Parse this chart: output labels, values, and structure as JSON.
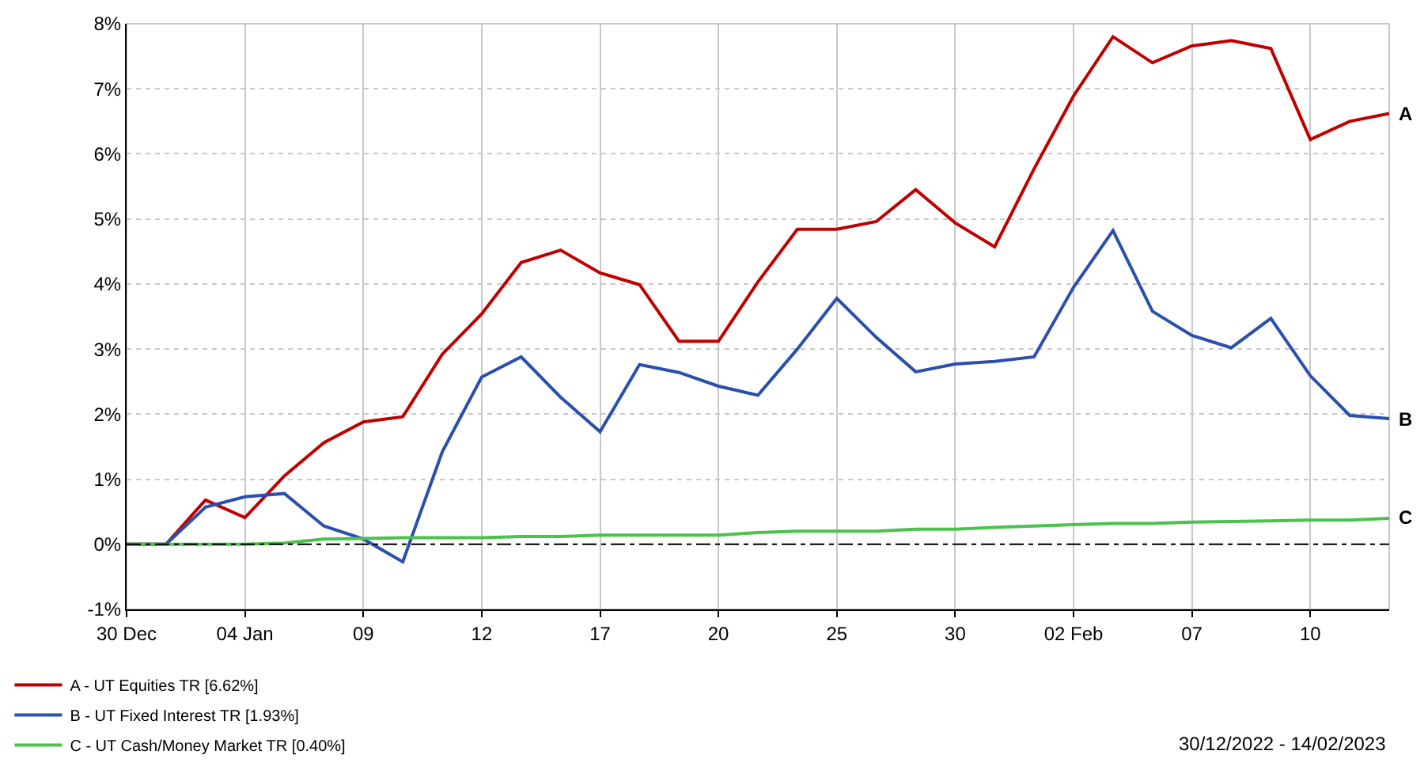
{
  "chart_data": {
    "type": "line",
    "categories": [
      "30 Dec",
      null,
      null,
      "04 Jan",
      null,
      null,
      "09",
      null,
      null,
      "12",
      null,
      null,
      "17",
      null,
      null,
      "20",
      null,
      null,
      "25",
      null,
      null,
      "30",
      null,
      null,
      "02 Feb",
      null,
      null,
      "07",
      null,
      null,
      "10",
      null,
      null
    ],
    "series": [
      {
        "name": "A - UT Equities TR [6.62%]",
        "color": "#c00000",
        "values": [
          0,
          0,
          0.68,
          0.41,
          1.05,
          1.56,
          1.88,
          1.96,
          2.92,
          3.54,
          4.33,
          4.52,
          4.17,
          3.99,
          3.12,
          3.12,
          4.03,
          4.84,
          4.84,
          4.96,
          5.45,
          4.94,
          4.57,
          5.77,
          6.89,
          7.8,
          7.4,
          7.66,
          7.74,
          7.62,
          6.22,
          6.5,
          6.62
        ]
      },
      {
        "name": "B - UT Fixed Interest TR [1.93%]",
        "color": "#2a4fad",
        "values": [
          0,
          0,
          0.57,
          0.73,
          0.78,
          0.28,
          0.08,
          -0.27,
          1.42,
          2.57,
          2.88,
          2.26,
          1.73,
          2.76,
          2.64,
          2.43,
          2.29,
          3.0,
          3.78,
          3.18,
          2.65,
          2.77,
          2.81,
          2.88,
          3.95,
          4.82,
          3.58,
          3.21,
          3.02,
          3.47,
          2.59,
          1.98,
          1.93
        ]
      },
      {
        "name": "C - UT Cash/Money Market TR [0.40%]",
        "color": "#4cc14c",
        "values": [
          0,
          0,
          0,
          0,
          0.02,
          0.08,
          0.09,
          0.1,
          0.1,
          0.1,
          0.12,
          0.12,
          0.14,
          0.14,
          0.14,
          0.14,
          0.18,
          0.2,
          0.2,
          0.2,
          0.23,
          0.23,
          0.26,
          0.28,
          0.3,
          0.32,
          0.32,
          0.34,
          0.35,
          0.36,
          0.37,
          0.37,
          0.4
        ]
      }
    ],
    "ylim": [
      -1,
      8
    ],
    "yticks": [
      {
        "value": -1,
        "label": "-1%"
      },
      {
        "value": 0,
        "label": "0%"
      },
      {
        "value": 1,
        "label": "1%"
      },
      {
        "value": 2,
        "label": "2%"
      },
      {
        "value": 3,
        "label": "3%"
      },
      {
        "value": 4,
        "label": "4%"
      },
      {
        "value": 5,
        "label": "5%"
      },
      {
        "value": 6,
        "label": "6%"
      },
      {
        "value": 7,
        "label": "7%"
      },
      {
        "value": 8,
        "label": "8%"
      }
    ],
    "ref_lines": [
      {
        "axis": "y",
        "value": 0,
        "color": "#000000",
        "line_style": "dotted"
      }
    ],
    "grid": true,
    "legend": "bottom left",
    "marker": "none",
    "line_style": "solid",
    "annotations": [
      "A",
      "B",
      "C",
      "30/12/2022 - 14/02/2023"
    ]
  }
}
